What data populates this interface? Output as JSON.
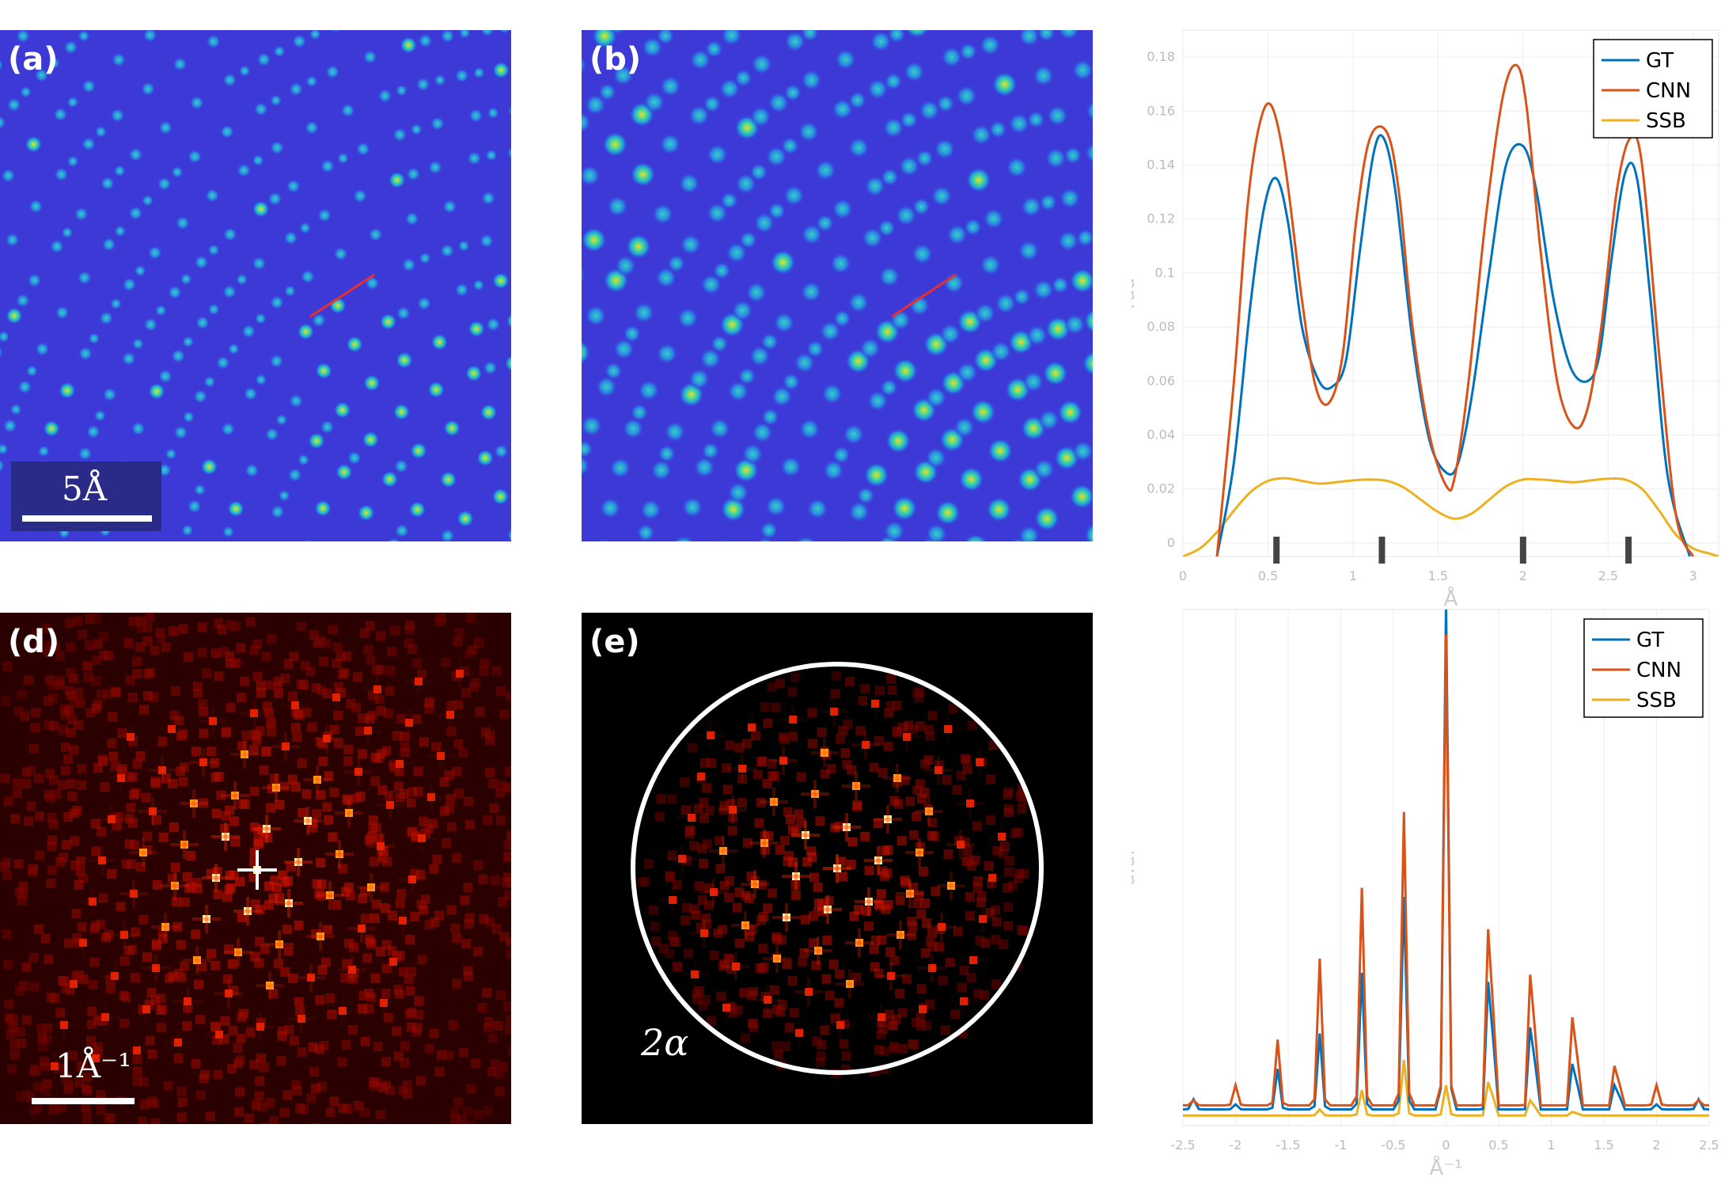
{
  "panels": {
    "a": {
      "letter": "(a)",
      "scale_label": "5Å"
    },
    "b": {
      "letter": "(b)"
    },
    "d": {
      "letter": "(d)",
      "scale_label": "1Å⁻¹"
    },
    "e": {
      "letter": "(e)",
      "circle_label": "2α"
    }
  },
  "colors": {
    "GT": "#0072bd",
    "CNN": "#d95319",
    "SSB": "#edb120",
    "line_profile": "#e8302a"
  },
  "chart_data": [
    {
      "type": "line",
      "id": "c",
      "xlabel": "Å",
      "ylabel": "rad",
      "xlim": [
        0,
        3.15
      ],
      "ylim": [
        -0.005,
        0.19
      ],
      "xticks": [
        0,
        0.5,
        1,
        1.5,
        2,
        2.5,
        3
      ],
      "yticks": [
        0,
        0.02,
        0.04,
        0.06,
        0.08,
        0.1,
        0.12,
        0.14,
        0.16,
        0.18
      ],
      "xtick_labels": [
        "0",
        "0.5",
        "1",
        "1.5",
        "2",
        "2.5",
        "3"
      ],
      "ytick_labels": [
        "0",
        "0.02",
        "0.04",
        "0.06",
        "0.08",
        "0.1",
        "0.12",
        "0.14",
        "0.16",
        "0.18"
      ],
      "grid": true,
      "legend": "top-right",
      "atom_markers": [
        0.55,
        1.17,
        2.0,
        2.62
      ],
      "series": [
        {
          "name": "GT",
          "x": [
            0.2,
            0.3,
            0.4,
            0.48,
            0.55,
            0.62,
            0.7,
            0.8,
            0.88,
            0.96,
            1.04,
            1.12,
            1.18,
            1.25,
            1.35,
            1.45,
            1.55,
            1.62,
            1.7,
            1.8,
            1.9,
            2.0,
            2.08,
            2.18,
            2.28,
            2.38,
            2.45,
            2.52,
            2.6,
            2.67,
            2.75,
            2.85,
            2.98
          ],
          "y": [
            -0.005,
            0.03,
            0.09,
            0.125,
            0.135,
            0.118,
            0.08,
            0.06,
            0.058,
            0.068,
            0.108,
            0.144,
            0.15,
            0.13,
            0.075,
            0.038,
            0.026,
            0.03,
            0.055,
            0.1,
            0.14,
            0.147,
            0.13,
            0.09,
            0.065,
            0.06,
            0.07,
            0.105,
            0.137,
            0.135,
            0.09,
            0.025,
            -0.005
          ]
        },
        {
          "name": "CNN",
          "x": [
            0.2,
            0.3,
            0.38,
            0.45,
            0.52,
            0.6,
            0.7,
            0.78,
            0.86,
            0.94,
            1.02,
            1.1,
            1.2,
            1.27,
            1.35,
            1.45,
            1.55,
            1.6,
            1.68,
            1.78,
            1.88,
            1.96,
            2.02,
            2.1,
            2.2,
            2.3,
            2.38,
            2.46,
            2.55,
            2.63,
            2.7,
            2.8,
            2.9,
            3.0
          ],
          "y": [
            -0.005,
            0.06,
            0.125,
            0.155,
            0.162,
            0.14,
            0.09,
            0.058,
            0.052,
            0.07,
            0.12,
            0.15,
            0.152,
            0.13,
            0.08,
            0.04,
            0.021,
            0.025,
            0.06,
            0.12,
            0.165,
            0.177,
            0.162,
            0.11,
            0.06,
            0.043,
            0.05,
            0.08,
            0.13,
            0.15,
            0.14,
            0.07,
            0.01,
            -0.005
          ]
        },
        {
          "name": "SSB",
          "x": [
            0,
            0.1,
            0.2,
            0.3,
            0.4,
            0.5,
            0.6,
            0.7,
            0.8,
            0.9,
            1.0,
            1.1,
            1.2,
            1.3,
            1.4,
            1.5,
            1.6,
            1.7,
            1.8,
            1.9,
            2.0,
            2.1,
            2.2,
            2.3,
            2.4,
            2.5,
            2.6,
            2.7,
            2.8,
            2.9,
            3.0,
            3.1,
            3.15
          ],
          "y": [
            -0.005,
            -0.002,
            0.004,
            0.012,
            0.019,
            0.023,
            0.024,
            0.023,
            0.022,
            0.0225,
            0.0232,
            0.0235,
            0.023,
            0.0205,
            0.016,
            0.0115,
            0.009,
            0.011,
            0.016,
            0.021,
            0.0235,
            0.0235,
            0.023,
            0.0225,
            0.0232,
            0.0238,
            0.0235,
            0.02,
            0.012,
            0.003,
            -0.002,
            -0.004,
            -0.005
          ]
        }
      ]
    },
    {
      "type": "line",
      "id": "f",
      "xlabel": "Å⁻¹",
      "ylabel": "a.u.",
      "xlim": [
        -2.5,
        2.5
      ],
      "ylim": [
        -0.02,
        1.0
      ],
      "xticks": [
        -2.5,
        -2,
        -1.5,
        -1,
        -0.5,
        0,
        0.5,
        1,
        1.5,
        2,
        2.5
      ],
      "xtick_labels": [
        "-2.5",
        "-2",
        "-1.5",
        "-1",
        "-0.5",
        "0",
        "0.5",
        "1",
        "1.5",
        "2",
        "2.5"
      ],
      "grid": true,
      "legend": "top-right",
      "series": [
        {
          "name": "GT",
          "peaks": [
            [
              -2.4,
              0.02
            ],
            [
              -2.0,
              0.01
            ],
            [
              -1.6,
              0.08
            ],
            [
              -1.2,
              0.15
            ],
            [
              -0.8,
              0.27
            ],
            [
              -0.4,
              0.42
            ],
            [
              0.0,
              1.0
            ],
            [
              0.42,
              0.42
            ],
            [
              0.82,
              0.27
            ],
            [
              1.22,
              0.15
            ],
            [
              1.62,
              0.08
            ],
            [
              2.0,
              0.01
            ],
            [
              2.4,
              0.02
            ]
          ],
          "baseline": 0.012
        },
        {
          "name": "CNN",
          "peaks": [
            [
              -2.4,
              0.01
            ],
            [
              -2.0,
              0.04
            ],
            [
              -1.6,
              0.13
            ],
            [
              -1.2,
              0.29
            ],
            [
              -0.8,
              0.43
            ],
            [
              -0.4,
              0.58
            ],
            [
              0.0,
              0.93
            ],
            [
              0.42,
              0.58
            ],
            [
              0.82,
              0.43
            ],
            [
              1.22,
              0.29
            ],
            [
              1.62,
              0.13
            ],
            [
              2.0,
              0.04
            ],
            [
              2.4,
              0.01
            ]
          ],
          "baseline": 0.02
        },
        {
          "name": "SSB",
          "peaks": [
            [
              -1.2,
              0.012
            ],
            [
              -0.8,
              0.05
            ],
            [
              -0.4,
              0.11
            ],
            [
              0.0,
              0.06
            ],
            [
              0.42,
              0.11
            ],
            [
              0.82,
              0.05
            ],
            [
              1.22,
              0.012
            ]
          ],
          "baseline": 0.0
        }
      ]
    }
  ]
}
